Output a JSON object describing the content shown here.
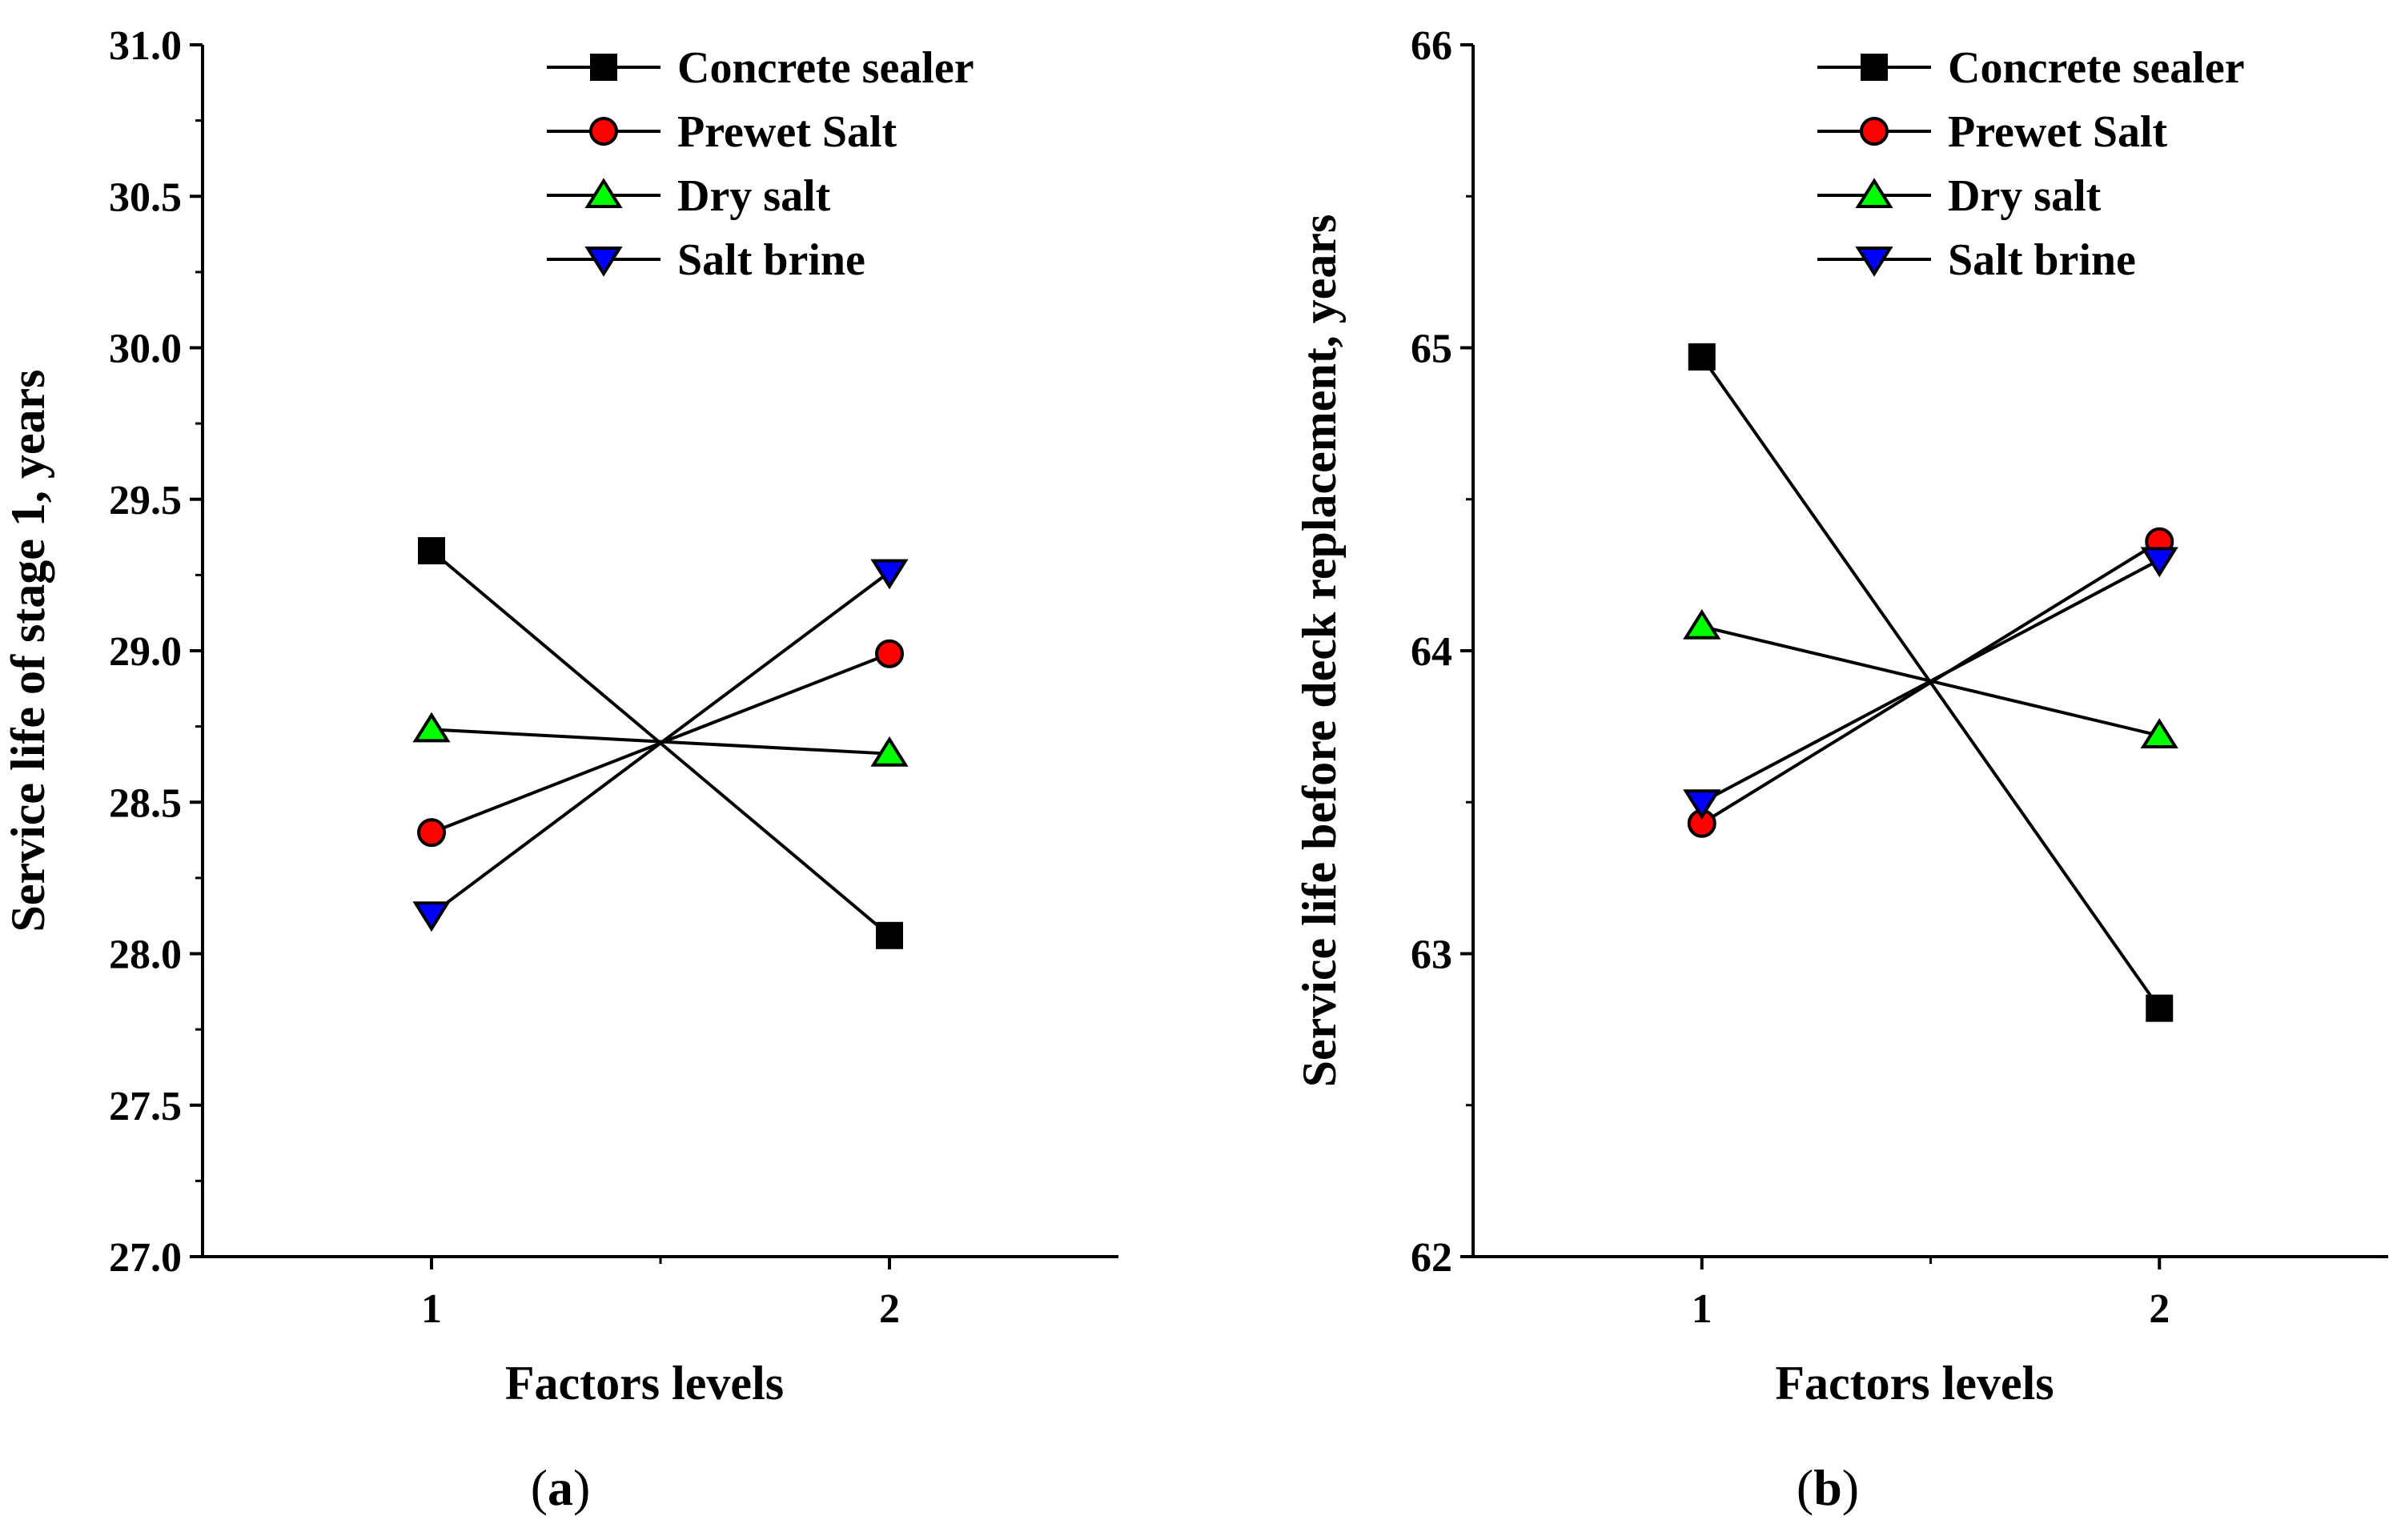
{
  "chart_data": [
    {
      "type": "line",
      "panel_label_open": "(",
      "panel_label_letter": "a",
      "panel_label_close": ")",
      "xlabel": "Factors levels",
      "ylabel": "Service life of stage 1, years",
      "x_categories": [
        "1",
        "2"
      ],
      "xlim": [
        0.5,
        2.5
      ],
      "ylim": [
        27.0,
        31.0
      ],
      "yticks": [
        "27.0",
        "27.5",
        "28.0",
        "28.5",
        "29.0",
        "29.5",
        "30.0",
        "30.5",
        "31.0"
      ],
      "grid": false,
      "legend_position": "top-right",
      "series": [
        {
          "name": "Concrete sealer",
          "marker": "square",
          "color": "#000000",
          "values": [
            29.33,
            28.06
          ]
        },
        {
          "name": "Prewet Salt",
          "marker": "circle",
          "color": "#ff0000",
          "values": [
            28.4,
            28.99
          ]
        },
        {
          "name": "Dry salt",
          "marker": "triangle-up",
          "color": "#00ff00",
          "values": [
            28.74,
            28.66
          ]
        },
        {
          "name": "Salt brine",
          "marker": "triangle-down",
          "color": "#0000ff",
          "values": [
            28.13,
            29.26
          ]
        }
      ]
    },
    {
      "type": "line",
      "panel_label_open": "(",
      "panel_label_letter": "b",
      "panel_label_close": ")",
      "xlabel": "Factors levels",
      "ylabel": "Service life before deck replacement, years",
      "x_categories": [
        "1",
        "2"
      ],
      "xlim": [
        0.5,
        2.5
      ],
      "ylim": [
        62,
        66
      ],
      "yticks": [
        "62",
        "63",
        "64",
        "65",
        "66"
      ],
      "grid": false,
      "legend_position": "top-right",
      "series": [
        {
          "name": "Concrete sealer",
          "marker": "square",
          "color": "#000000",
          "values": [
            64.97,
            62.82
          ]
        },
        {
          "name": "Prewet Salt",
          "marker": "circle",
          "color": "#ff0000",
          "values": [
            63.43,
            64.36
          ]
        },
        {
          "name": "Dry salt",
          "marker": "triangle-up",
          "color": "#00ff00",
          "values": [
            64.08,
            63.72
          ]
        },
        {
          "name": "Salt brine",
          "marker": "triangle-down",
          "color": "#0000ff",
          "values": [
            63.5,
            64.3
          ]
        }
      ]
    }
  ]
}
